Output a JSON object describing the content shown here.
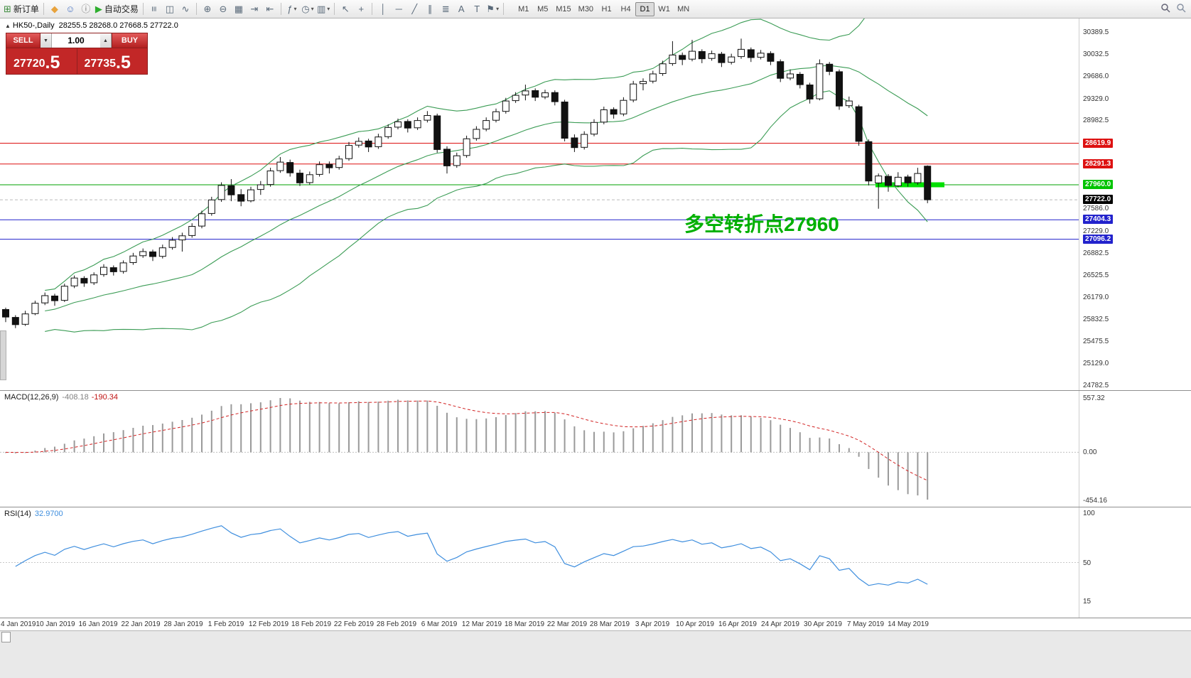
{
  "toolbar": {
    "items": [
      {
        "name": "new-order",
        "glyph": "⊞",
        "color": "#3c8a3c",
        "label": "新订单"
      },
      {
        "sep": true
      },
      {
        "name": "mql5-community",
        "glyph": "◆",
        "color": "#e8a33d"
      },
      {
        "name": "user-profile",
        "glyph": "☺",
        "color": "#4d76c4"
      },
      {
        "name": "news",
        "glyph": "ⓘ",
        "color": "#7a7a7a"
      },
      {
        "name": "auto-trading",
        "glyph": "▶",
        "color": "#2eae2e",
        "label": "自动交易"
      },
      {
        "sep": true
      },
      {
        "name": "chart-bars",
        "glyph": "≡",
        "rot": true
      },
      {
        "name": "chart-candles",
        "glyph": "◫"
      },
      {
        "name": "chart-line",
        "glyph": "∿"
      },
      {
        "sep": true
      },
      {
        "name": "zoom-in",
        "glyph": "⊕"
      },
      {
        "name": "zoom-out",
        "glyph": "⊖"
      },
      {
        "name": "tile-windows",
        "glyph": "▦"
      },
      {
        "name": "auto-scroll",
        "glyph": "⇥"
      },
      {
        "name": "chart-shift",
        "glyph": "⇤"
      },
      {
        "sep": true
      },
      {
        "name": "indicators",
        "glyph": "ƒ",
        "dd": true
      },
      {
        "name": "periods",
        "glyph": "◷",
        "dd": true
      },
      {
        "name": "templates",
        "glyph": "▥",
        "dd": true
      },
      {
        "sep": true
      },
      {
        "name": "cursor",
        "glyph": "↖"
      },
      {
        "name": "crosshair",
        "glyph": "+"
      },
      {
        "sep": true
      },
      {
        "name": "vertical-line",
        "glyph": "│"
      },
      {
        "name": "horizontal-line",
        "glyph": "─"
      },
      {
        "name": "trendline",
        "glyph": "╱"
      },
      {
        "name": "equidistant-channel",
        "glyph": "∥"
      },
      {
        "name": "fibonacci",
        "glyph": "≣"
      },
      {
        "name": "text",
        "glyph": "A"
      },
      {
        "name": "text-label",
        "glyph": "T"
      },
      {
        "name": "arrows",
        "glyph": "⚑",
        "dd": true
      },
      {
        "sep": true
      }
    ],
    "timeframes": [
      "M1",
      "M5",
      "M15",
      "M30",
      "H1",
      "H4",
      "D1",
      "W1",
      "MN"
    ],
    "active_timeframe": "D1"
  },
  "chart": {
    "title_marker": "▲",
    "title": "HK50-,Daily",
    "ohlc_text": "28255.5 28268.0 27668.5 27722.0",
    "annotation": {
      "text": "多空转折点27960",
      "color": "#00b000"
    },
    "trade_panel": {
      "sell_label": "SELL",
      "buy_label": "BUY",
      "volume": "1.00",
      "spin_down_glyph": "▼",
      "spin_up_glyph": "▲",
      "sell_price_main": "27720",
      "sell_price_frac": ".5",
      "buy_price_main": "27735",
      "buy_price_frac": ".5"
    },
    "price_max": 30600,
    "price_min": 24700,
    "axis_labels_plain": [
      30389.5,
      30032.5,
      29686.0,
      29329.0,
      28982.5,
      27586.0,
      27229.0,
      26882.5,
      26525.5,
      26179.0,
      25832.5,
      25475.5,
      25129.0,
      24782.5
    ],
    "hlines": [
      {
        "price": 28619.9,
        "color": "#dd1111",
        "label": "28619.9",
        "box": "#dd1111"
      },
      {
        "price": 28291.3,
        "color": "#dd1111",
        "label": "28291.3",
        "box": "#dd1111"
      },
      {
        "price": 27960.0,
        "color": "#00a000",
        "label": "27960.0",
        "box": "#00c400",
        "thick_segment": true
      },
      {
        "price": 27722.0,
        "color": "#bbbbbb",
        "label": "27722.0",
        "box": "#000000",
        "dashed": true
      },
      {
        "price": 27404.3,
        "color": "#2222cc",
        "label": "27404.3",
        "box": "#2222cc"
      },
      {
        "price": 27096.2,
        "color": "#2222cc",
        "label": "27096.2",
        "box": "#2222cc"
      }
    ]
  },
  "chart_data": {
    "type": "candlestick",
    "symbol": "HK50",
    "period": "Daily",
    "title": "HK50-,Daily",
    "last_ohlc": {
      "open": 28255.5,
      "high": 28268.0,
      "low": 27668.5,
      "close": 27722.0
    },
    "sell_quote": 27720.5,
    "buy_quote": 27735.5,
    "overlays": {
      "bollinger": {
        "period": 20,
        "deviation": 2,
        "color": "#3b9c55"
      }
    },
    "candles": [
      [
        25980,
        26010,
        25780,
        25860
      ],
      [
        25855,
        25890,
        25685,
        25740
      ],
      [
        25745,
        25960,
        25720,
        25910
      ],
      [
        25915,
        26120,
        25890,
        26080
      ],
      [
        26085,
        26250,
        26050,
        26200
      ],
      [
        26195,
        26230,
        26040,
        26120
      ],
      [
        26125,
        26390,
        26100,
        26350
      ],
      [
        26355,
        26520,
        26320,
        26480
      ],
      [
        26475,
        26510,
        26340,
        26400
      ],
      [
        26405,
        26570,
        26370,
        26530
      ],
      [
        26535,
        26700,
        26500,
        26650
      ],
      [
        26645,
        26680,
        26520,
        26580
      ],
      [
        26585,
        26760,
        26550,
        26720
      ],
      [
        26725,
        26880,
        26690,
        26830
      ],
      [
        26835,
        26950,
        26800,
        26900
      ],
      [
        26895,
        26930,
        26750,
        26820
      ],
      [
        26825,
        27010,
        26790,
        26960
      ],
      [
        26965,
        27130,
        26930,
        27080
      ],
      [
        27085,
        27200,
        26900,
        27150
      ],
      [
        27155,
        27350,
        27120,
        27300
      ],
      [
        27305,
        27550,
        27270,
        27500
      ],
      [
        27505,
        27770,
        27470,
        27720
      ],
      [
        27725,
        28000,
        27690,
        27950
      ],
      [
        27945,
        28050,
        27700,
        27800
      ],
      [
        27805,
        27890,
        27620,
        27700
      ],
      [
        27705,
        27930,
        27680,
        27880
      ],
      [
        27885,
        28020,
        27800,
        27960
      ],
      [
        27965,
        28230,
        27930,
        28180
      ],
      [
        28185,
        28400,
        28150,
        28320
      ],
      [
        28315,
        28360,
        28090,
        28150
      ],
      [
        28145,
        28200,
        27940,
        27990
      ],
      [
        27995,
        28170,
        27960,
        28120
      ],
      [
        28125,
        28330,
        28090,
        28280
      ],
      [
        28285,
        28330,
        28140,
        28230
      ],
      [
        28235,
        28420,
        28200,
        28370
      ],
      [
        28375,
        28640,
        28340,
        28585
      ],
      [
        28590,
        28710,
        28550,
        28650
      ],
      [
        28655,
        28690,
        28480,
        28560
      ],
      [
        28565,
        28770,
        28530,
        28720
      ],
      [
        28725,
        28920,
        28690,
        28870
      ],
      [
        28875,
        29010,
        28840,
        28960
      ],
      [
        28965,
        29000,
        28790,
        28860
      ],
      [
        28865,
        29030,
        28830,
        28980
      ],
      [
        28985,
        29130,
        28950,
        29060
      ],
      [
        29055,
        29090,
        28470,
        28520
      ],
      [
        28525,
        28570,
        28140,
        28260
      ],
      [
        28265,
        28470,
        28230,
        28420
      ],
      [
        28425,
        28740,
        28390,
        28690
      ],
      [
        28695,
        28890,
        28660,
        28840
      ],
      [
        28845,
        29030,
        28810,
        28980
      ],
      [
        28985,
        29170,
        28950,
        29120
      ],
      [
        29125,
        29340,
        29090,
        29290
      ],
      [
        29295,
        29430,
        29260,
        29380
      ],
      [
        29385,
        29550,
        29300,
        29450
      ],
      [
        29455,
        29490,
        29290,
        29350
      ],
      [
        29355,
        29470,
        29320,
        29420
      ],
      [
        29425,
        29460,
        29220,
        29280
      ],
      [
        29275,
        29310,
        28650,
        28700
      ],
      [
        28705,
        28760,
        28480,
        28550
      ],
      [
        28555,
        28810,
        28520,
        28760
      ],
      [
        28765,
        29000,
        28730,
        28950
      ],
      [
        28955,
        29200,
        28920,
        29150
      ],
      [
        29155,
        29190,
        29010,
        29080
      ],
      [
        29085,
        29350,
        29050,
        29300
      ],
      [
        29305,
        29610,
        29270,
        29560
      ],
      [
        29565,
        29650,
        29460,
        29600
      ],
      [
        29605,
        29770,
        29570,
        29720
      ],
      [
        29725,
        29930,
        29690,
        29880
      ],
      [
        29885,
        30240,
        29850,
        30020
      ],
      [
        30015,
        30060,
        29860,
        29950
      ],
      [
        29955,
        30260,
        29920,
        30080
      ],
      [
        30075,
        30110,
        29890,
        29960
      ],
      [
        29965,
        30090,
        29930,
        30040
      ],
      [
        30035,
        30070,
        29830,
        29900
      ],
      [
        29905,
        30040,
        29870,
        29990
      ],
      [
        29995,
        30280,
        29960,
        30110
      ],
      [
        30105,
        30140,
        29910,
        29980
      ],
      [
        29985,
        30100,
        29950,
        30050
      ],
      [
        30045,
        30080,
        29860,
        29920
      ],
      [
        29915,
        29950,
        29590,
        29650
      ],
      [
        29655,
        29790,
        29620,
        29720
      ],
      [
        29715,
        29750,
        29490,
        29550
      ],
      [
        29545,
        29580,
        29250,
        29320
      ],
      [
        29325,
        29950,
        29300,
        29880
      ],
      [
        29875,
        29910,
        29700,
        29760
      ],
      [
        29755,
        29790,
        29150,
        29210
      ],
      [
        29215,
        29360,
        29180,
        29290
      ],
      [
        29200,
        29230,
        28580,
        28650
      ],
      [
        28645,
        28680,
        27950,
        28020
      ],
      [
        27990,
        28140,
        27580,
        28100
      ],
      [
        28095,
        28130,
        27850,
        27950
      ],
      [
        27945,
        28160,
        27920,
        28080
      ],
      [
        28085,
        28120,
        27930,
        27990
      ],
      [
        27995,
        28230,
        27960,
        28140
      ],
      [
        28255.5,
        28268.0,
        27668.5,
        27722.0
      ]
    ],
    "date_ticks": [
      "4 Jan 2019",
      "10 Jan 2019",
      "16 Jan 2019",
      "22 Jan 2019",
      "28 Jan 2019",
      "1 Feb 2019",
      "12 Feb 2019",
      "18 Feb 2019",
      "22 Feb 2019",
      "28 Feb 2019",
      "6 Mar 2019",
      "12 Mar 2019",
      "18 Mar 2019",
      "22 Mar 2019",
      "28 Mar 2019",
      "3 Apr 2019",
      "10 Apr 2019",
      "16 Apr 2019",
      "24 Apr 2019",
      "30 Apr 2019",
      "7 May 2019",
      "14 May 2019"
    ],
    "indicators": [
      {
        "label": "MACD(12,26,9)",
        "value1": "-408.18",
        "value2": "-190.34",
        "axis_top": "557.32",
        "axis_zero": "0.00",
        "axis_bottom": "-454.16"
      },
      {
        "label": "RSI(14)",
        "value": "32.9700",
        "axis_top": "100",
        "axis_mid": "50",
        "axis_low": "15"
      }
    ]
  }
}
